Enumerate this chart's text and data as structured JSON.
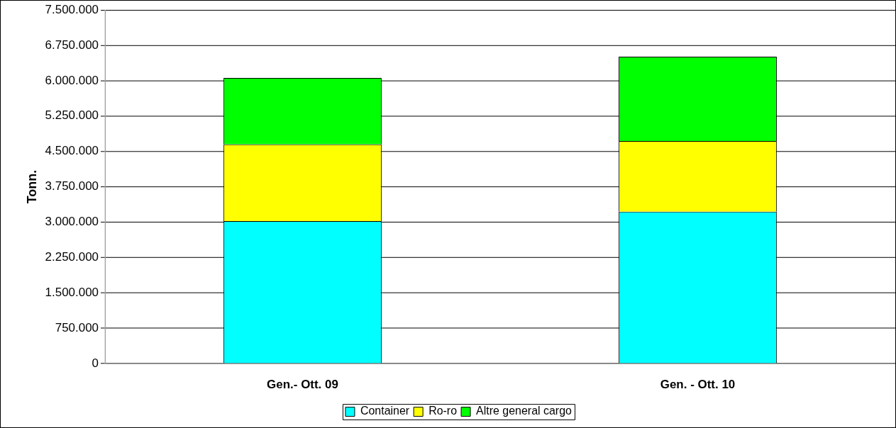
{
  "chart_data": {
    "type": "bar",
    "ylabel": "Tonn.",
    "categories": [
      "Gen.- Ott. 09",
      "Gen. - Ott. 10"
    ],
    "stacked": true,
    "series": [
      {
        "name": "Container",
        "color": "#00ffff",
        "values": [
          3020000,
          3220000
        ]
      },
      {
        "name": "Ro-ro",
        "color": "#ffff00",
        "values": [
          1630000,
          1500000
        ]
      },
      {
        "name": "Altre general cargo",
        "color": "#00ff00",
        "values": [
          1410000,
          1790000
        ]
      }
    ],
    "ylim": [
      0,
      7500000
    ],
    "yticks": [
      {
        "value": 0,
        "label": "0"
      },
      {
        "value": 750000,
        "label": "750.000"
      },
      {
        "value": 1500000,
        "label": "1.500.000"
      },
      {
        "value": 2250000,
        "label": "2.250.000"
      },
      {
        "value": 3000000,
        "label": "3.000.000"
      },
      {
        "value": 3750000,
        "label": "3.750.000"
      },
      {
        "value": 4500000,
        "label": "4.500.000"
      },
      {
        "value": 5250000,
        "label": "5.250.000"
      },
      {
        "value": 6000000,
        "label": "6.000.000"
      },
      {
        "value": 6750000,
        "label": "6.750.000"
      },
      {
        "value": 7500000,
        "label": "7.500.000"
      }
    ],
    "grid": "y",
    "legend": "bottom"
  }
}
